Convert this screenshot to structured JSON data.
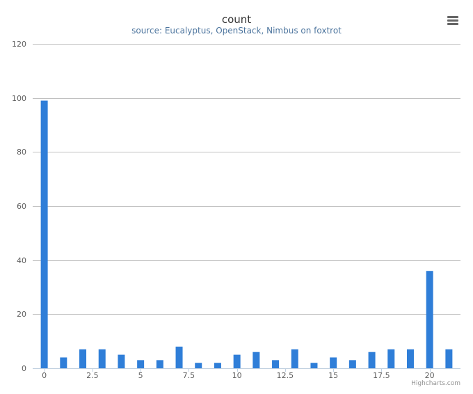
{
  "chart_data": {
    "type": "bar",
    "title": "count",
    "subtitle": "source: Eucalyptus, OpenStack, Nimbus on foxtrot",
    "x": [
      0,
      1,
      2,
      3,
      4,
      5,
      6,
      7,
      8,
      9,
      10,
      11,
      12,
      13,
      14,
      15,
      16,
      17,
      18,
      19,
      20,
      21
    ],
    "values": [
      99,
      4,
      7,
      7,
      5,
      3,
      3,
      8,
      2,
      2,
      5,
      6,
      3,
      7,
      2,
      4,
      3,
      6,
      7,
      7,
      36,
      7
    ],
    "xlim": [
      -0.6,
      21.6
    ],
    "ylim": [
      0,
      120
    ],
    "x_ticks": [
      0,
      2.5,
      5,
      7.5,
      10,
      12.5,
      15,
      17.5,
      20
    ],
    "x_tick_labels": [
      "0",
      "2.5",
      "5",
      "7.5",
      "10",
      "12.5",
      "15",
      "17.5",
      "20"
    ],
    "y_ticks": [
      0,
      20,
      40,
      60,
      80,
      100,
      120
    ],
    "y_tick_labels": [
      "0",
      "20",
      "40",
      "60",
      "80",
      "100",
      "120"
    ],
    "grid": true,
    "legend": "none",
    "bar_color": "#2f7ed8"
  },
  "credits": "Highcharts.com",
  "menu": {
    "icon": "hamburger-menu-icon"
  }
}
